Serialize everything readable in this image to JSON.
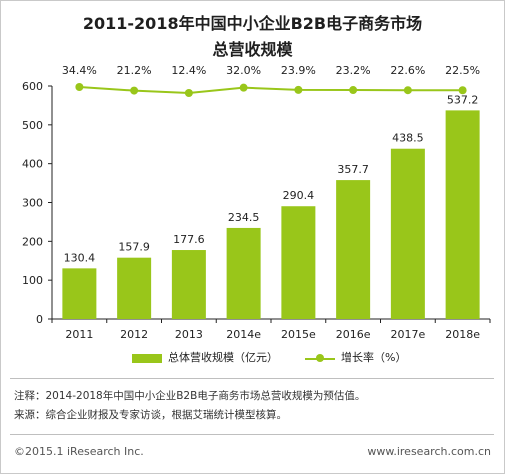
{
  "colors": {
    "bar": "#99c61a",
    "line": "#99c61a",
    "axis": "#222222"
  },
  "header": {
    "title_line1": "2011-2018年中国中小企业B2B电子商务市场",
    "title_line2": "总营收规模"
  },
  "chart_data": {
    "type": "bar+line",
    "categories": [
      "2011",
      "2012",
      "2013",
      "2014e",
      "2015e",
      "2016e",
      "2017e",
      "2018e"
    ],
    "series": [
      {
        "name": "总体营收规模（亿元）",
        "type": "bar",
        "values": [
          130.4,
          157.9,
          177.6,
          234.5,
          290.4,
          357.7,
          438.5,
          537.2
        ]
      },
      {
        "name": "增长率（%）",
        "type": "line",
        "values": [
          34.4,
          21.2,
          12.4,
          32.0,
          23.9,
          23.2,
          22.6,
          22.5
        ],
        "labels": [
          "34.4%",
          "21.2%",
          "12.4%",
          "32.0%",
          "23.9%",
          "23.2%",
          "22.6%",
          "22.5%"
        ]
      }
    ],
    "bar_labels": [
      "130.4",
      "157.9",
      "177.6",
      "234.5",
      "290.4",
      "357.7",
      "438.5",
      "537.2"
    ],
    "ylim": [
      0,
      600
    ],
    "yticks": [
      "0",
      "100",
      "200",
      "300",
      "400",
      "500",
      "600"
    ],
    "legend_position": "bottom",
    "grid": false
  },
  "notes": {
    "note1": "注释：2014-2018年中国中小企业B2B电子商务市场总营收规模为预估值。",
    "note2": "来源：综合企业财报及专家访谈，根据艾瑞统计模型核算。"
  },
  "footer": {
    "copyright": "©2015.1 iResearch Inc.",
    "site": "www.iresearch.com.cn"
  }
}
